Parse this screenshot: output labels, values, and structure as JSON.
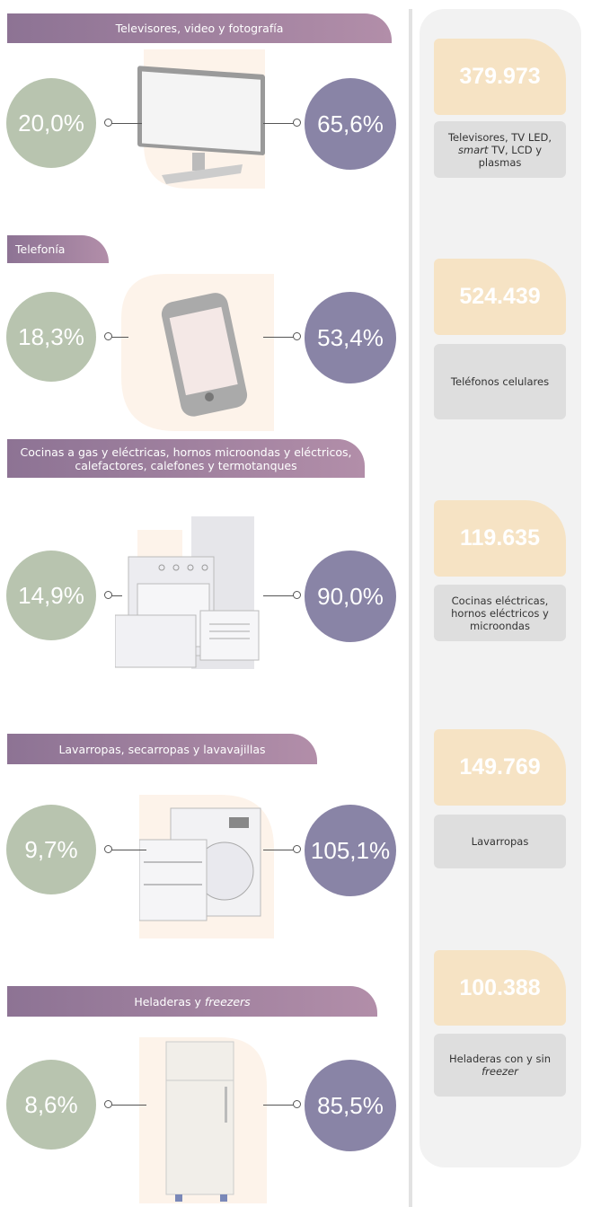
{
  "sections": [
    {
      "header": [
        {
          "text": "Televisores, video y fotografía"
        }
      ],
      "left_value": "20,0%",
      "right_value": "65,6%",
      "number": "379.973",
      "description": [
        {
          "text": "Televisores, TV LED,"
        },
        {
          "text": "smart",
          "italic": true
        },
        {
          "text": "TV, LCD y plasmas"
        }
      ]
    },
    {
      "header": [
        {
          "text": "Telefonía"
        }
      ],
      "left_value": "18,3%",
      "right_value": "53,4%",
      "number": "524.439",
      "description": [
        {
          "text": "Teléfonos celulares"
        }
      ]
    },
    {
      "header": [
        {
          "text": "Cocinas a gas y eléctricas, hornos microondas y eléctricos, calefactores, calefones y termotanques"
        }
      ],
      "left_value": "14,9%",
      "right_value": "90,0%",
      "number": "119.635",
      "description": [
        {
          "text": "Cocinas eléctricas, hornos eléctricos y microondas"
        }
      ]
    },
    {
      "header": [
        {
          "text": "Lavarropas, secarropas y lavavajillas"
        }
      ],
      "left_value": "9,7%",
      "right_value": "105,1%",
      "number": "149.769",
      "description": [
        {
          "text": "Lavarropas"
        }
      ]
    },
    {
      "header": [
        {
          "text": "Heladeras y"
        },
        {
          "text": "freezers",
          "italic": true
        }
      ],
      "left_value": "8,6%",
      "right_value": "85,5%",
      "number": "100.388",
      "description": [
        {
          "text": "Heladeras con y sin"
        },
        {
          "text": "freezer",
          "italic": true
        }
      ]
    }
  ]
}
